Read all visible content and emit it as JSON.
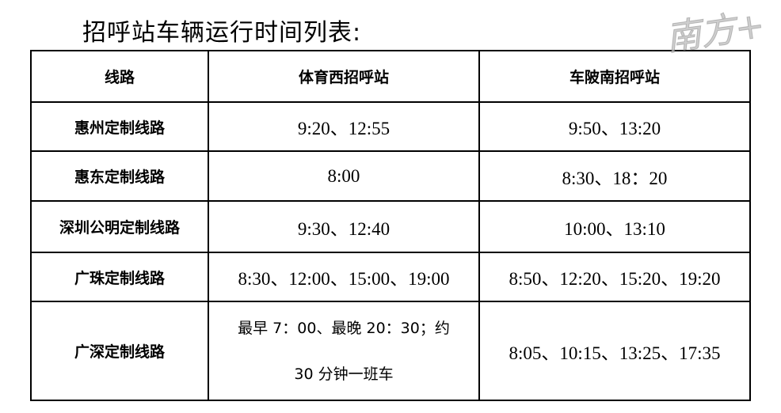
{
  "title": "招呼站车辆运行时间列表:",
  "table": {
    "headers": [
      "线路",
      "体育西招呼站",
      "车陂南招呼站"
    ],
    "rows": [
      {
        "route": "惠州定制线路",
        "tiyuxi": "9:20、12:55",
        "chebeinan": "9:50、13:20"
      },
      {
        "route": "惠东定制线路",
        "tiyuxi": "8:00",
        "chebeinan": "8:30、18：20"
      },
      {
        "route": "深圳公明定制线路",
        "tiyuxi": "9:30、12:40",
        "chebeinan": "10:00、13:10"
      },
      {
        "route": "广珠定制线路",
        "tiyuxi": "8:30、12:00、15:00、19:00",
        "chebeinan": "8:50、12:20、15:20、19:20"
      },
      {
        "route": "广深定制线路",
        "tiyuxi_line1": "最早 7：00、最晚 20：30；约",
        "tiyuxi_line2": "30 分钟一班车",
        "chebeinan": "8:05、10:15、13:25、17:35"
      }
    ]
  },
  "watermark": "南方+"
}
